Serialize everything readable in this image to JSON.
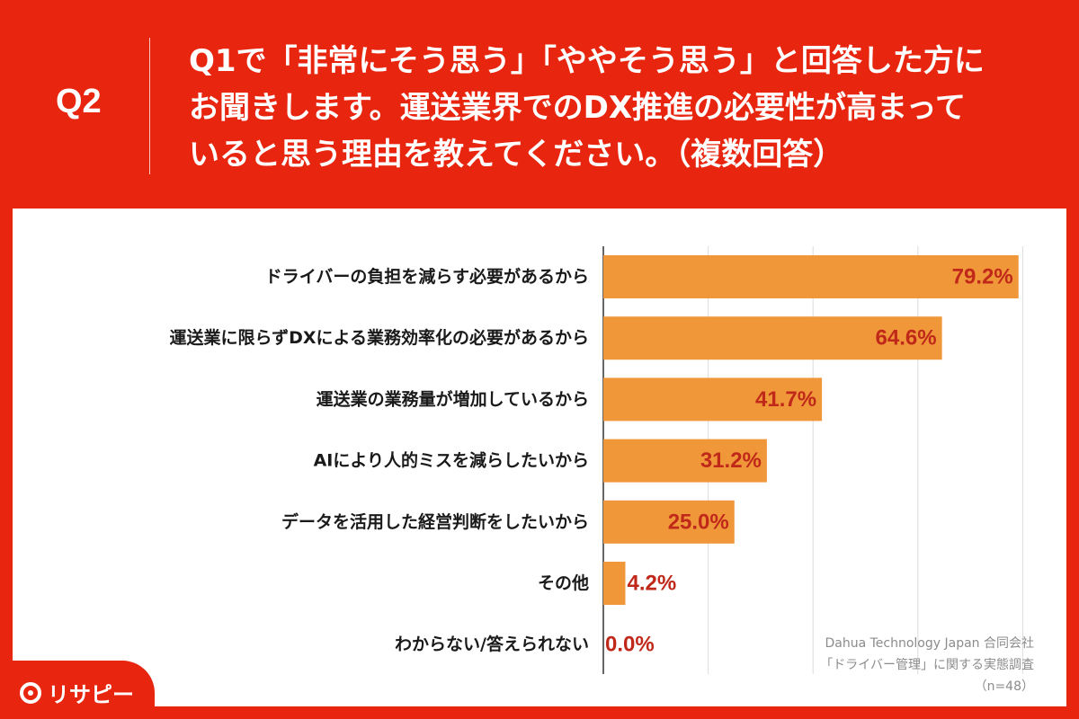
{
  "question": {
    "number": "Q2",
    "lines": [
      "Q1で「非常にそう思う」「ややそう思う」と回答した方に",
      "お聞きします。運送業界でのDX推進の必要性が高まって",
      "いると思う理由を教えてください。（複数回答）"
    ]
  },
  "chart_data": {
    "type": "bar",
    "orientation": "horizontal",
    "categories": [
      "ドライバーの負担を減らす必要があるから",
      "運送業に限らずDXによる業務効率化の必要があるから",
      "運送業の業務量が増加しているから",
      "AIにより人的ミスを減らしたいから",
      "データを活用した経営判断をしたいから",
      "その他",
      "わからない/答えられない"
    ],
    "values": [
      79.2,
      64.6,
      41.7,
      31.2,
      25.0,
      4.2,
      0.0
    ],
    "value_labels": [
      "79.2%",
      "64.6%",
      "41.7%",
      "31.2%",
      "25.0%",
      "4.2%",
      "0.0%"
    ],
    "xlim": [
      0,
      80
    ],
    "grid": true,
    "bar_color": "#F0973A",
    "label_color": "#C0281A"
  },
  "credit": {
    "company": "Dahua Technology Japan 合同会社",
    "survey": "「ドライバー管理」に関する実態調査",
    "n": "（n=48）"
  },
  "logo": {
    "text": "リサピー"
  },
  "colors": {
    "background": "#E8250F",
    "panel": "#FFFFFF"
  }
}
